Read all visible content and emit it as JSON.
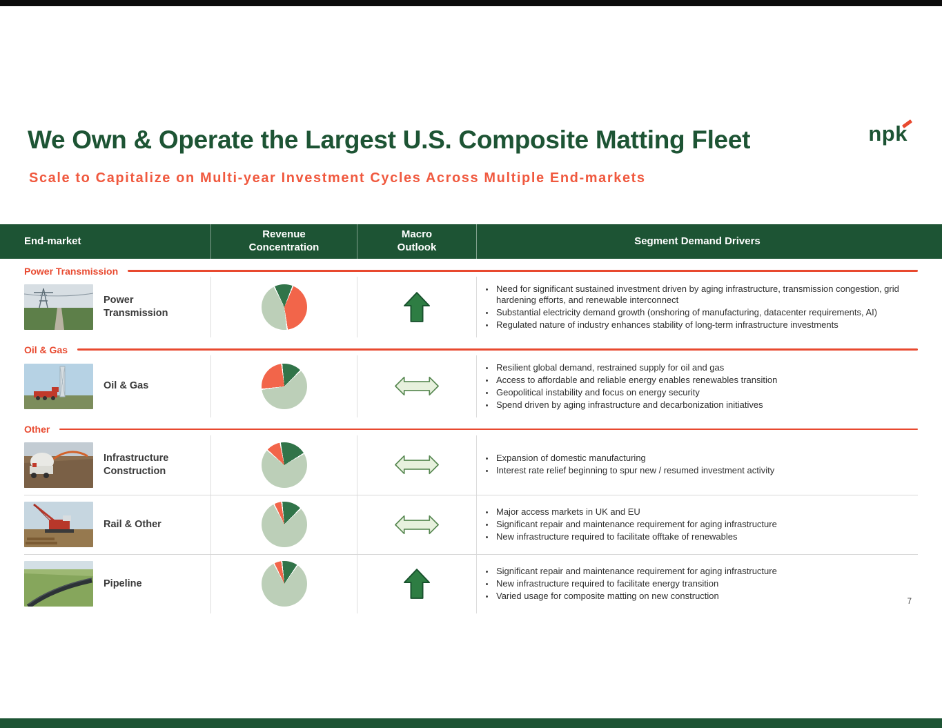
{
  "page": {
    "title": "We Own & Operate the Largest U.S. Composite Matting Fleet",
    "subtitle": "Scale to Capitalize on Multi-year Investment Cycles Across Multiple End-markets",
    "logo_text": "npk",
    "page_number": "7"
  },
  "colors": {
    "brand_green": "#1d5434",
    "accent_red": "#e8492f",
    "subtitle_red": "#f0593f",
    "pie_green": "#317449",
    "pie_coral": "#f2654a",
    "pie_sage": "#bccfb8",
    "outlook_up": {
      "fill": "#2e7d43",
      "stroke": "#17502c"
    },
    "outlook_flat": {
      "fill": "#e7f1dd",
      "stroke": "#55864f"
    },
    "divider_gray": "#dcdcdc"
  },
  "table": {
    "headers": {
      "end_market": "End-market",
      "revenue_concentration": "Revenue\nConcentration",
      "macro_outlook": "Macro\nOutlook",
      "segment_demand_drivers": "Segment Demand Drivers"
    }
  },
  "sections": [
    {
      "label": "Power Transmission",
      "rows": [
        {
          "label": "Power Transmission",
          "outlook": "up",
          "bullets": [
            "Need for significant sustained investment driven by aging infrastructure, transmission congestion, grid hardening efforts, and renewable interconnect",
            "Substantial electricity demand growth (onshoring of manufacturing, datacenter requirements, AI)",
            "Regulated nature of industry enhances stability of long-term infrastructure investments"
          ]
        }
      ]
    },
    {
      "label": "Oil & Gas",
      "rows": [
        {
          "label": "Oil & Gas",
          "outlook": "flat",
          "bullets": [
            "Resilient global demand, restrained supply for oil and gas",
            "Access to affordable and reliable energy enables renewables transition",
            "Geopolitical instability and focus on energy security",
            "Spend driven by aging infrastructure and decarbonization initiatives"
          ]
        }
      ]
    },
    {
      "label": "Other",
      "rows": [
        {
          "label": "Infrastructure Construction",
          "outlook": "flat",
          "bullets": [
            "Expansion of domestic manufacturing",
            "Interest rate relief beginning to spur new / resumed investment activity"
          ]
        },
        {
          "label": "Rail & Other",
          "outlook": "flat",
          "bullets": [
            "Major access markets in UK and EU",
            "Significant repair and maintenance requirement for aging infrastructure",
            "New infrastructure required to facilitate offtake of renewables"
          ]
        },
        {
          "label": "Pipeline",
          "outlook": "up",
          "bullets": [
            "Significant repair and maintenance requirement for aging infrastructure",
            "New infrastructure required to facilitate energy transition",
            "Varied usage for composite matting on new construction"
          ]
        }
      ]
    }
  ],
  "chart_data": [
    {
      "type": "pie",
      "title": "Revenue Concentration - Power Transmission",
      "rotation": -28,
      "slices": [
        {
          "name": "green-share",
          "value": 13,
          "color": "#317449"
        },
        {
          "name": "coral-share",
          "value": 42,
          "color": "#f2654a"
        },
        {
          "name": "sage-share",
          "value": 45,
          "color": "#bccfb8"
        }
      ]
    },
    {
      "type": "pie",
      "title": "Revenue Concentration - Oil & Gas",
      "rotation": -8,
      "slices": [
        {
          "name": "green-share",
          "value": 14,
          "color": "#317449"
        },
        {
          "name": "sage-share",
          "value": 61,
          "color": "#bccfb8"
        },
        {
          "name": "coral-share",
          "value": 25,
          "color": "#f2654a"
        }
      ]
    },
    {
      "type": "pie",
      "title": "Revenue Concentration - Infrastructure Construction",
      "rotation": -12,
      "slices": [
        {
          "name": "green-share",
          "value": 19,
          "color": "#317449"
        },
        {
          "name": "sage-share",
          "value": 71,
          "color": "#bccfb8"
        },
        {
          "name": "coral-share",
          "value": 10,
          "color": "#f2654a"
        }
      ]
    },
    {
      "type": "pie",
      "title": "Revenue Concentration - Rail & Other",
      "rotation": -8,
      "slices": [
        {
          "name": "green-share",
          "value": 14,
          "color": "#317449"
        },
        {
          "name": "sage-share",
          "value": 81,
          "color": "#bccfb8"
        },
        {
          "name": "coral-share",
          "value": 5,
          "color": "#f2654a"
        }
      ]
    },
    {
      "type": "pie",
      "title": "Revenue Concentration - Pipeline",
      "rotation": -8,
      "slices": [
        {
          "name": "green-share",
          "value": 11,
          "color": "#317449"
        },
        {
          "name": "sage-share",
          "value": 84,
          "color": "#bccfb8"
        },
        {
          "name": "coral-share",
          "value": 5,
          "color": "#f2654a"
        }
      ]
    }
  ]
}
